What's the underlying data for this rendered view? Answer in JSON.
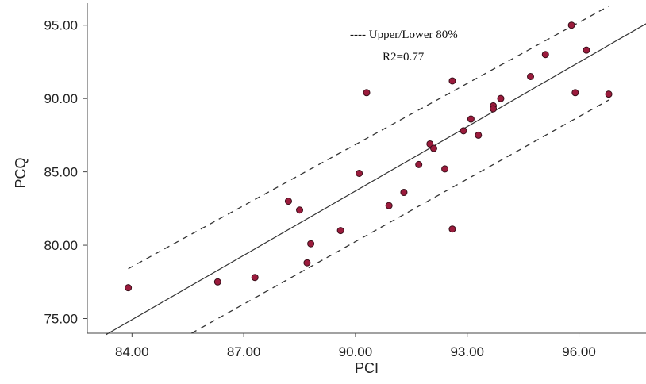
{
  "chart_data": {
    "type": "scatter",
    "xlabel": "PCI",
    "ylabel": "PCQ",
    "xlim": [
      82.8,
      97.8
    ],
    "ylim": [
      74.0,
      96.5
    ],
    "xticks": [
      84,
      87,
      90,
      93,
      96
    ],
    "yticks": [
      75,
      80,
      85,
      90,
      95
    ],
    "xtick_labels": [
      "84.00",
      "87.00",
      "90.00",
      "93.00",
      "96.00"
    ],
    "ytick_labels": [
      "75.00",
      "80.00",
      "85.00",
      "90.00",
      "95.00"
    ],
    "points": [
      {
        "x": 83.9,
        "y": 77.1
      },
      {
        "x": 86.3,
        "y": 77.5
      },
      {
        "x": 87.3,
        "y": 77.8
      },
      {
        "x": 88.2,
        "y": 83.0
      },
      {
        "x": 88.5,
        "y": 82.4
      },
      {
        "x": 88.7,
        "y": 78.8
      },
      {
        "x": 88.8,
        "y": 80.1
      },
      {
        "x": 89.6,
        "y": 81.0
      },
      {
        "x": 90.1,
        "y": 84.9
      },
      {
        "x": 90.3,
        "y": 90.4
      },
      {
        "x": 90.9,
        "y": 82.7
      },
      {
        "x": 91.3,
        "y": 83.6
      },
      {
        "x": 91.7,
        "y": 85.5
      },
      {
        "x": 92.0,
        "y": 86.9
      },
      {
        "x": 92.1,
        "y": 86.6
      },
      {
        "x": 92.4,
        "y": 85.2
      },
      {
        "x": 92.6,
        "y": 91.2
      },
      {
        "x": 92.6,
        "y": 81.1
      },
      {
        "x": 92.9,
        "y": 87.8
      },
      {
        "x": 93.1,
        "y": 88.6
      },
      {
        "x": 93.3,
        "y": 87.5
      },
      {
        "x": 93.7,
        "y": 89.5
      },
      {
        "x": 93.7,
        "y": 89.3
      },
      {
        "x": 93.9,
        "y": 90.0
      },
      {
        "x": 94.7,
        "y": 91.5
      },
      {
        "x": 95.1,
        "y": 93.0
      },
      {
        "x": 95.8,
        "y": 95.0
      },
      {
        "x": 95.9,
        "y": 90.4
      },
      {
        "x": 96.2,
        "y": 93.3
      },
      {
        "x": 96.8,
        "y": 90.3
      }
    ],
    "fit_line": {
      "x": [
        83.3,
        97.8
      ],
      "y": [
        73.9,
        95.1
      ]
    },
    "upper_band": {
      "x": [
        83.9,
        96.8
      ],
      "y": [
        78.4,
        96.3
      ]
    },
    "lower_band": {
      "x": [
        85.6,
        96.8
      ],
      "y": [
        74.0,
        89.9
      ]
    },
    "legend_text": "---- Upper/Lower 80%",
    "annotation": "R2=0.77",
    "legend_position": "top-center",
    "grid": false,
    "colors": {
      "point_fill": "#9b1b3c",
      "point_stroke": "#3a0f1a",
      "line": "#333333",
      "axis": "#444444"
    }
  }
}
